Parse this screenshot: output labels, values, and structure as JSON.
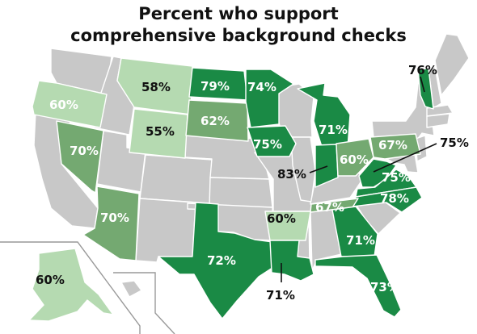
{
  "title": {
    "line1": "Percent who support",
    "line2": "comprehensive background checks"
  },
  "colors": {
    "no_data": "#c8c8c8",
    "low": "#b5dab1",
    "mid": "#74a971",
    "high": "#1a8a45",
    "border": "#ffffff",
    "inset_frame": "#999999"
  },
  "states": [
    {
      "name": "Oregon",
      "label": "60%",
      "value": 60,
      "tier": "low"
    },
    {
      "name": "Montana",
      "label": "58%",
      "value": 58,
      "tier": "low"
    },
    {
      "name": "Wyoming",
      "label": "55%",
      "value": 55,
      "tier": "low"
    },
    {
      "name": "Nevada",
      "label": "70%",
      "value": 70,
      "tier": "mid"
    },
    {
      "name": "Arizona",
      "label": "70%",
      "value": 70,
      "tier": "mid"
    },
    {
      "name": "North Dakota",
      "label": "79%",
      "value": 79,
      "tier": "high"
    },
    {
      "name": "South Dakota",
      "label": "62%",
      "value": 62,
      "tier": "mid"
    },
    {
      "name": "Minnesota",
      "label": "74%",
      "value": 74,
      "tier": "high"
    },
    {
      "name": "Iowa",
      "label": "75%",
      "value": 75,
      "tier": "high"
    },
    {
      "name": "Michigan",
      "label": "71%",
      "value": 71,
      "tier": "high"
    },
    {
      "name": "Indiana",
      "label": "83%",
      "value": 83,
      "tier": "high"
    },
    {
      "name": "Ohio",
      "label": "60%",
      "value": 60,
      "tier": "mid"
    },
    {
      "name": "Pennsylvania",
      "label": "67%",
      "value": 67,
      "tier": "mid"
    },
    {
      "name": "West Virginia",
      "label": "75%",
      "value": 75,
      "tier": "high"
    },
    {
      "name": "Virginia",
      "label": "75%",
      "value": 75,
      "tier": "high"
    },
    {
      "name": "North Carolina",
      "label": "78%",
      "value": 78,
      "tier": "high"
    },
    {
      "name": "Tennessee",
      "label": "67%",
      "value": 67,
      "tier": "mid"
    },
    {
      "name": "Arkansas",
      "label": "60%",
      "value": 60,
      "tier": "low"
    },
    {
      "name": "Texas",
      "label": "72%",
      "value": 72,
      "tier": "high"
    },
    {
      "name": "Louisiana",
      "label": "71%",
      "value": 71,
      "tier": "high"
    },
    {
      "name": "Georgia",
      "label": "71%",
      "value": 71,
      "tier": "high"
    },
    {
      "name": "Florida",
      "label": "73%",
      "value": 73,
      "tier": "high"
    },
    {
      "name": "Vermont",
      "label": "76%",
      "value": 76,
      "tier": "high"
    },
    {
      "name": "Alaska",
      "label": "60%",
      "value": 60,
      "tier": "low"
    }
  ]
}
